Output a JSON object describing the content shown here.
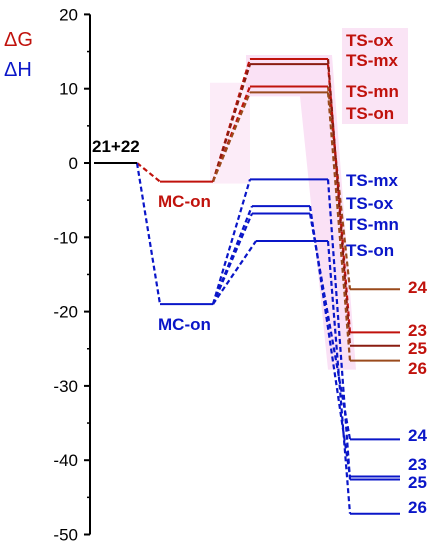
{
  "legend": {
    "dg_label": "ΔG",
    "dh_label": "ΔH",
    "dg_color": "#c0120c",
    "dh_color": "#0a16c8"
  },
  "colors": {
    "mx_line": "#8a1c10",
    "ts_on_dg_line": "#9a4a1c",
    "glow": "#f6c9ec",
    "axis": "#000000"
  },
  "axis": {
    "ylim": [
      -50,
      20
    ],
    "ticks": [
      20,
      10,
      0,
      -10,
      -20,
      -30,
      -40,
      -50
    ],
    "tick_labels": [
      "20",
      "10",
      "0",
      "-10",
      "-20",
      "-30",
      "-40",
      "-50"
    ]
  },
  "reactant": {
    "label": "21+22",
    "energy": 0
  },
  "mc_dg": {
    "label": "MC-on",
    "energy": -2.5
  },
  "mc_dh": {
    "label": "MC-on",
    "energy": -19
  },
  "ts_dg": [
    {
      "label": "TS-ox",
      "energy": 14
    },
    {
      "label": "TS-mx",
      "energy": 13.3
    },
    {
      "label": "TS-mn",
      "energy": 10.3
    },
    {
      "label": "TS-on",
      "energy": 9.5
    }
  ],
  "ts_dh": [
    {
      "label": "TS-mx",
      "energy": -2.2
    },
    {
      "label": "TS-ox",
      "energy": -5.8
    },
    {
      "label": "TS-mn",
      "energy": -6.8
    },
    {
      "label": "TS-on",
      "energy": -10.5
    }
  ],
  "prod_dg": [
    {
      "label": "24",
      "energy": -17
    },
    {
      "label": "23",
      "energy": -22.8
    },
    {
      "label": "25",
      "energy": -24.6
    },
    {
      "label": "26",
      "energy": -26.6
    }
  ],
  "prod_dh": [
    {
      "label": "24",
      "energy": -37.2
    },
    {
      "label": "23",
      "energy": -42.2
    },
    {
      "label": "25",
      "energy": -42.6
    },
    {
      "label": "26",
      "energy": -47.2
    }
  ]
}
